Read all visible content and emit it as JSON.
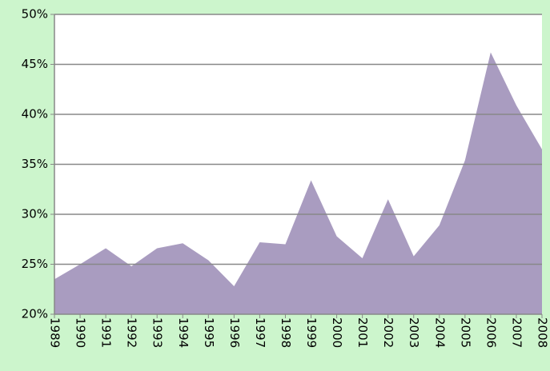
{
  "chart_data": {
    "type": "area",
    "categories": [
      "1989",
      "1990",
      "1991",
      "1992",
      "1993",
      "1994",
      "1995",
      "1996",
      "1997",
      "1998",
      "1999",
      "2000",
      "2001",
      "2002",
      "2003",
      "2004",
      "2005",
      "2006",
      "2007",
      "2008"
    ],
    "values": [
      23.5,
      25.0,
      26.6,
      24.8,
      26.6,
      27.1,
      25.4,
      22.8,
      27.2,
      27.0,
      33.4,
      27.8,
      25.6,
      31.5,
      25.8,
      28.9,
      35.4,
      46.2,
      40.9,
      36.5
    ],
    "color": "#a99cc0",
    "ylim": [
      20,
      50
    ],
    "yticks": [
      {
        "value": 20,
        "label": "20%"
      },
      {
        "value": 25,
        "label": "25%"
      },
      {
        "value": 30,
        "label": "30%"
      },
      {
        "value": 35,
        "label": "35%"
      },
      {
        "value": 40,
        "label": "40%"
      },
      {
        "value": 45,
        "label": "45%"
      },
      {
        "value": 50,
        "label": "50%"
      }
    ],
    "grid": true
  }
}
